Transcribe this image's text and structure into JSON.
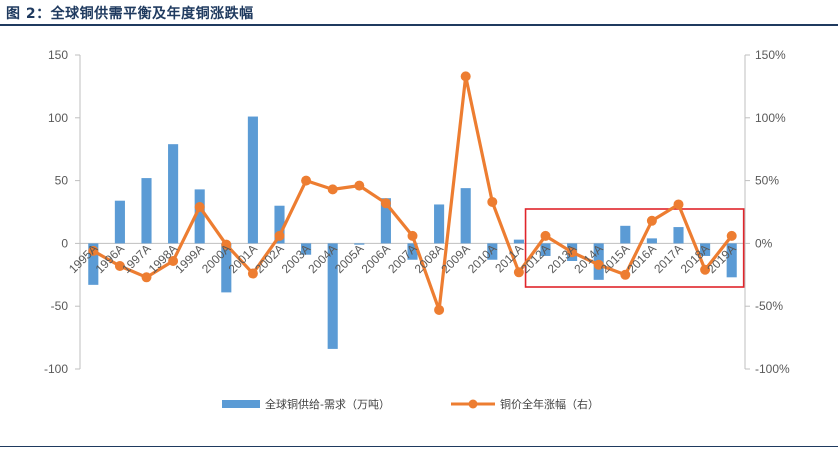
{
  "title": "图 2：全球铜供需平衡及年度铜涨跌幅",
  "colors": {
    "bar": "#5b9bd5",
    "line": "#ed7d31",
    "highlight": "#e0252b",
    "axis": "#bfbfbf",
    "title": "#1f3a5f"
  },
  "chart_data": {
    "type": "bar+line",
    "categories": [
      "1995A",
      "1996A",
      "1997A",
      "1998A",
      "1999A",
      "2000A",
      "2001A",
      "2002A",
      "2003A",
      "2004A",
      "2005A",
      "2006A",
      "2007A",
      "2008A",
      "2009A",
      "2010A",
      "2011A",
      "2012A",
      "2013A",
      "2014A",
      "2015A",
      "2016A",
      "2017A",
      "2018A",
      "2019A"
    ],
    "series": [
      {
        "name": "全球铜供给-需求（万吨）",
        "type": "bar",
        "axis": "left",
        "values": [
          -33,
          34,
          52,
          79,
          43,
          -39,
          101,
          30,
          -9,
          -84,
          -1,
          36,
          -13,
          31,
          44,
          -13,
          3,
          -10,
          -14,
          -29,
          14,
          4,
          13,
          -10,
          -27
        ]
      },
      {
        "name": "铜价全年涨幅（右）",
        "type": "line",
        "axis": "right",
        "values": [
          -6,
          -18,
          -27,
          -14,
          29,
          -1,
          -24,
          6,
          50,
          43,
          46,
          32,
          6,
          -53,
          133,
          33,
          -23,
          6,
          -7,
          -17,
          -25,
          18,
          31,
          -21,
          6
        ]
      }
    ],
    "y_left": {
      "ticks": [
        "150",
        "100",
        "50",
        "0",
        "-50",
        "-100"
      ],
      "lim": [
        -100,
        150
      ]
    },
    "y_right": {
      "ticks": [
        "150%",
        "100%",
        "50%",
        "0%",
        "-50%",
        "-100%"
      ],
      "lim": [
        -100,
        150
      ]
    },
    "highlight_range": [
      "2012A",
      "2019A"
    ],
    "grid": false,
    "legend": "bottom"
  }
}
